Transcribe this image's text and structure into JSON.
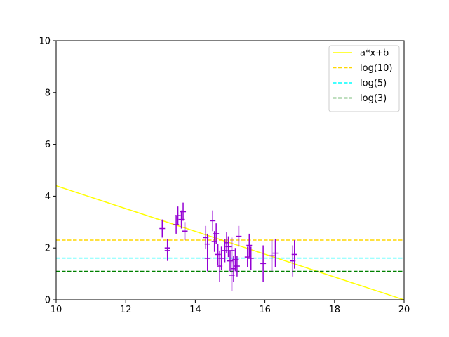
{
  "chart_data": {
    "type": "scatter",
    "title": "",
    "xlabel": "",
    "ylabel": "",
    "xlim": [
      10,
      20
    ],
    "ylim": [
      0,
      10
    ],
    "xticks": [
      10,
      12,
      14,
      16,
      18,
      20
    ],
    "yticks": [
      0,
      2,
      4,
      6,
      8,
      10
    ],
    "grid": false,
    "legend_position": "upper right",
    "fit_line": {
      "name": "a*x+b",
      "color": "#ffff00",
      "x": [
        10,
        20
      ],
      "y": [
        4.4,
        0.0
      ]
    },
    "hlines": [
      {
        "name": "log(10)",
        "y": 2.303,
        "color": "#ffd700",
        "style": "dashed"
      },
      {
        "name": "log(5)",
        "y": 1.609,
        "color": "#00ffff",
        "style": "dashed"
      },
      {
        "name": "log(3)",
        "y": 1.099,
        "color": "#008000",
        "style": "dashed"
      }
    ],
    "points_color": "#9400d3",
    "points": [
      {
        "x": 13.05,
        "y": 2.75,
        "yerr": 0.35
      },
      {
        "x": 13.2,
        "y": 2.0,
        "yerr": 0.35
      },
      {
        "x": 13.2,
        "y": 1.9,
        "yerr": 0.4
      },
      {
        "x": 13.45,
        "y": 2.9,
        "yerr": 0.35
      },
      {
        "x": 13.5,
        "y": 3.25,
        "yerr": 0.35
      },
      {
        "x": 13.6,
        "y": 3.1,
        "yerr": 0.35
      },
      {
        "x": 13.65,
        "y": 3.4,
        "yerr": 0.35
      },
      {
        "x": 13.7,
        "y": 2.65,
        "yerr": 0.35
      },
      {
        "x": 14.3,
        "y": 2.4,
        "yerr": 0.45
      },
      {
        "x": 14.35,
        "y": 1.6,
        "yerr": 0.5
      },
      {
        "x": 14.35,
        "y": 2.15,
        "yerr": 0.4
      },
      {
        "x": 14.5,
        "y": 3.05,
        "yerr": 0.4
      },
      {
        "x": 14.55,
        "y": 2.25,
        "yerr": 0.4
      },
      {
        "x": 14.6,
        "y": 2.55,
        "yerr": 0.4
      },
      {
        "x": 14.65,
        "y": 1.75,
        "yerr": 0.4
      },
      {
        "x": 14.7,
        "y": 1.3,
        "yerr": 0.6
      },
      {
        "x": 14.75,
        "y": 1.6,
        "yerr": 0.45
      },
      {
        "x": 14.85,
        "y": 1.9,
        "yerr": 0.45
      },
      {
        "x": 14.9,
        "y": 2.2,
        "yerr": 0.4
      },
      {
        "x": 14.95,
        "y": 2.05,
        "yerr": 0.4
      },
      {
        "x": 15.0,
        "y": 1.5,
        "yerr": 0.4
      },
      {
        "x": 15.05,
        "y": 0.95,
        "yerr": 0.6
      },
      {
        "x": 15.05,
        "y": 1.9,
        "yerr": 0.5
      },
      {
        "x": 15.1,
        "y": 1.2,
        "yerr": 0.5
      },
      {
        "x": 15.15,
        "y": 1.55,
        "yerr": 0.45
      },
      {
        "x": 15.2,
        "y": 1.3,
        "yerr": 0.4
      },
      {
        "x": 15.25,
        "y": 2.45,
        "yerr": 0.4
      },
      {
        "x": 15.5,
        "y": 1.65,
        "yerr": 0.4
      },
      {
        "x": 15.55,
        "y": 2.1,
        "yerr": 0.45
      },
      {
        "x": 15.6,
        "y": 1.6,
        "yerr": 0.45
      },
      {
        "x": 15.95,
        "y": 1.4,
        "yerr": 0.7
      },
      {
        "x": 16.2,
        "y": 1.7,
        "yerr": 0.6
      },
      {
        "x": 16.3,
        "y": 1.8,
        "yerr": 0.55
      },
      {
        "x": 16.8,
        "y": 1.5,
        "yerr": 0.6
      },
      {
        "x": 16.85,
        "y": 1.75,
        "yerr": 0.55
      }
    ]
  }
}
